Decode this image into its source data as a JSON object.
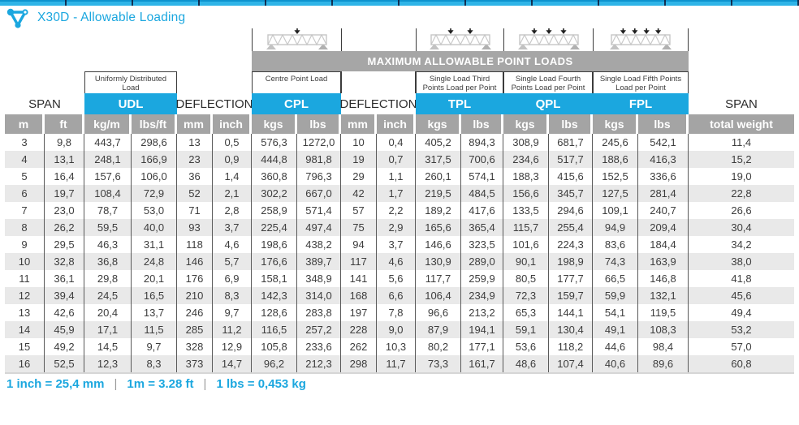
{
  "title": "X30D - Allowable Loading",
  "banner": "MAXIMUM ALLOWABLE POINT LOADS",
  "colors": {
    "accent": "#1ba7df",
    "header_grey": "#a4a4a4",
    "row_alt": "#e9e9e9",
    "text_dark": "#3d3d3d"
  },
  "columns": {
    "span_left": {
      "label": "SPAN",
      "units": [
        "m",
        "ft"
      ]
    },
    "udl": {
      "sublabel": "Uniformly Distributed Load",
      "label": "UDL",
      "units": [
        "kg/m",
        "lbs/ft"
      ]
    },
    "deflection1": {
      "label": "DEFLECTION",
      "units": [
        "mm",
        "inch"
      ]
    },
    "cpl": {
      "sublabel": "Centre Point Load",
      "label": "CPL",
      "units": [
        "kgs",
        "lbs"
      ],
      "point_loads": 1
    },
    "deflection2": {
      "label": "DEFLECTION",
      "units": [
        "mm",
        "inch"
      ]
    },
    "tpl": {
      "sublabel": "Single Load Third Points Load per Point",
      "label": "TPL",
      "units": [
        "kgs",
        "lbs"
      ],
      "point_loads": 2
    },
    "qpl": {
      "sublabel": "Single Load Fourth Points Load per Point",
      "label": "QPL",
      "units": [
        "kgs",
        "lbs"
      ],
      "point_loads": 3
    },
    "fpl": {
      "sublabel": "Single Load Fifth Points Load per Point",
      "label": "FPL",
      "units": [
        "kgs",
        "lbs"
      ],
      "point_loads": 4
    },
    "span_right": {
      "label": "SPAN",
      "unit": "total weight"
    }
  },
  "rows": [
    [
      "3",
      "9,8",
      "443,7",
      "298,6",
      "13",
      "0,5",
      "576,3",
      "1272,0",
      "10",
      "0,4",
      "405,2",
      "894,3",
      "308,9",
      "681,7",
      "245,6",
      "542,1",
      "11,4"
    ],
    [
      "4",
      "13,1",
      "248,1",
      "166,9",
      "23",
      "0,9",
      "444,8",
      "981,8",
      "19",
      "0,7",
      "317,5",
      "700,6",
      "234,6",
      "517,7",
      "188,6",
      "416,3",
      "15,2"
    ],
    [
      "5",
      "16,4",
      "157,6",
      "106,0",
      "36",
      "1,4",
      "360,8",
      "796,3",
      "29",
      "1,1",
      "260,1",
      "574,1",
      "188,3",
      "415,6",
      "152,5",
      "336,6",
      "19,0"
    ],
    [
      "6",
      "19,7",
      "108,4",
      "72,9",
      "52",
      "2,1",
      "302,2",
      "667,0",
      "42",
      "1,7",
      "219,5",
      "484,5",
      "156,6",
      "345,7",
      "127,5",
      "281,4",
      "22,8"
    ],
    [
      "7",
      "23,0",
      "78,7",
      "53,0",
      "71",
      "2,8",
      "258,9",
      "571,4",
      "57",
      "2,2",
      "189,2",
      "417,6",
      "133,5",
      "294,6",
      "109,1",
      "240,7",
      "26,6"
    ],
    [
      "8",
      "26,2",
      "59,5",
      "40,0",
      "93",
      "3,7",
      "225,4",
      "497,4",
      "75",
      "2,9",
      "165,6",
      "365,4",
      "115,7",
      "255,4",
      "94,9",
      "209,4",
      "30,4"
    ],
    [
      "9",
      "29,5",
      "46,3",
      "31,1",
      "118",
      "4,6",
      "198,6",
      "438,2",
      "94",
      "3,7",
      "146,6",
      "323,5",
      "101,6",
      "224,3",
      "83,6",
      "184,4",
      "34,2"
    ],
    [
      "10",
      "32,8",
      "36,8",
      "24,8",
      "146",
      "5,7",
      "176,6",
      "389,7",
      "117",
      "4,6",
      "130,9",
      "289,0",
      "90,1",
      "198,9",
      "74,3",
      "163,9",
      "38,0"
    ],
    [
      "11",
      "36,1",
      "29,8",
      "20,1",
      "176",
      "6,9",
      "158,1",
      "348,9",
      "141",
      "5,6",
      "117,7",
      "259,9",
      "80,5",
      "177,7",
      "66,5",
      "146,8",
      "41,8"
    ],
    [
      "12",
      "39,4",
      "24,5",
      "16,5",
      "210",
      "8,3",
      "142,3",
      "314,0",
      "168",
      "6,6",
      "106,4",
      "234,9",
      "72,3",
      "159,7",
      "59,9",
      "132,1",
      "45,6"
    ],
    [
      "13",
      "42,6",
      "20,4",
      "13,7",
      "246",
      "9,7",
      "128,6",
      "283,8",
      "197",
      "7,8",
      "96,6",
      "213,2",
      "65,3",
      "144,1",
      "54,1",
      "119,5",
      "49,4"
    ],
    [
      "14",
      "45,9",
      "17,1",
      "11,5",
      "285",
      "11,2",
      "116,5",
      "257,2",
      "228",
      "9,0",
      "87,9",
      "194,1",
      "59,1",
      "130,4",
      "49,1",
      "108,3",
      "53,2"
    ],
    [
      "15",
      "49,2",
      "14,5",
      "9,7",
      "328",
      "12,9",
      "105,8",
      "233,6",
      "262",
      "10,3",
      "80,2",
      "177,1",
      "53,6",
      "118,2",
      "44,6",
      "98,4",
      "57,0"
    ],
    [
      "16",
      "52,5",
      "12,3",
      "8,3",
      "373",
      "14,7",
      "96,2",
      "212,3",
      "298",
      "11,7",
      "73,3",
      "161,7",
      "48,6",
      "107,4",
      "40,6",
      "89,6",
      "60,8"
    ]
  ],
  "footer": {
    "items": [
      "1 inch = 25,4 mm",
      "1m = 3.28 ft",
      "1 lbs = 0,453 kg"
    ],
    "separator": "|"
  }
}
